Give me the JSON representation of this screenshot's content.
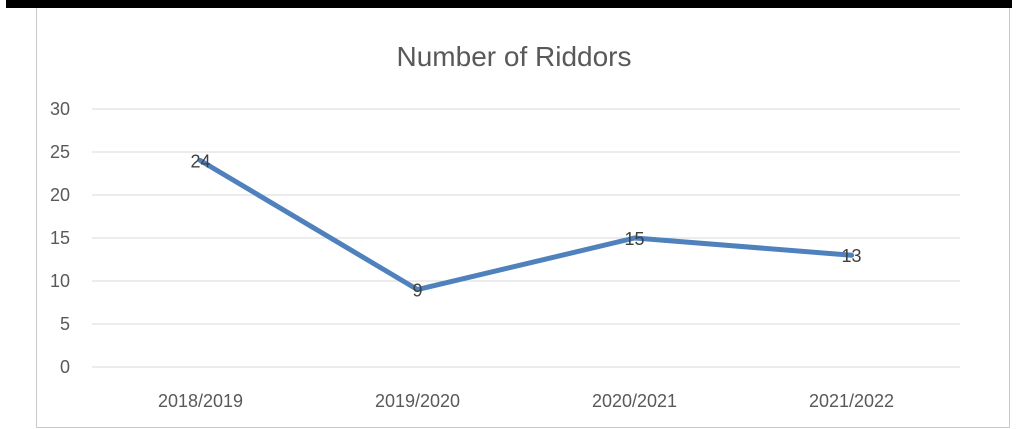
{
  "chart_data": {
    "type": "line",
    "title": "Number of Riddors",
    "xlabel": "",
    "ylabel": "",
    "categories": [
      "2018/2019",
      "2019/2020",
      "2020/2021",
      "2021/2022"
    ],
    "series": [
      {
        "values": [
          24,
          9,
          15,
          13
        ],
        "color": "#4f81bd"
      }
    ],
    "data_labels": [
      "24",
      "9",
      "15",
      "13"
    ],
    "ylim": [
      0,
      30
    ],
    "yticks": [
      "0",
      "5",
      "10",
      "15",
      "20",
      "25",
      "30"
    ],
    "grid": true,
    "legend": "none"
  }
}
